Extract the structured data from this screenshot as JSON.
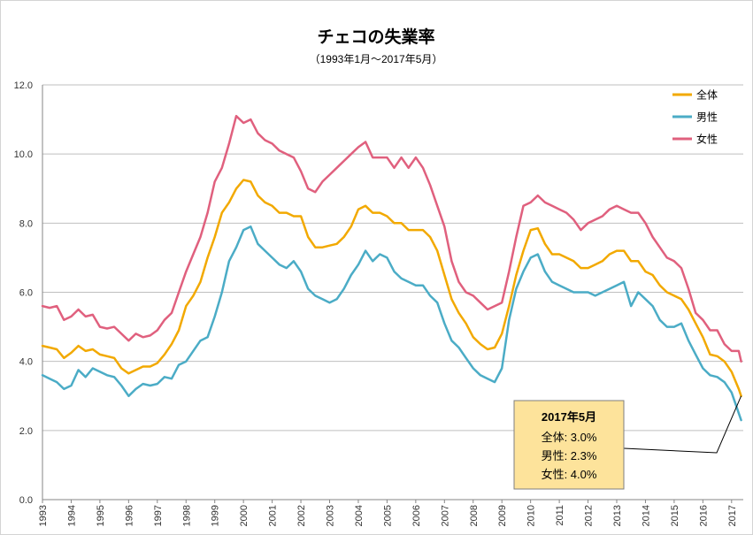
{
  "chart_data": {
    "type": "line",
    "title": "チェコの失業率",
    "subtitle": "（1993年1月～2017年5月）",
    "xlabel": "",
    "ylabel": "",
    "xlim": [
      "1993-01",
      "2017-05"
    ],
    "ylim": [
      0,
      12
    ],
    "yticks": [
      "0.0",
      "2.0",
      "4.0",
      "6.0",
      "8.0",
      "10.0",
      "12.0"
    ],
    "xticks": [
      "1993",
      "1994",
      "1995",
      "1996",
      "1997",
      "1998",
      "1999",
      "2000",
      "2001",
      "2002",
      "2003",
      "2004",
      "2005",
      "2006",
      "2007",
      "2008",
      "2009",
      "2010",
      "2011",
      "2012",
      "2013",
      "2014",
      "2015",
      "2016",
      "2017"
    ],
    "grid": true,
    "legend": "top-right",
    "x": [
      "1993-01",
      "1993-04",
      "1993-07",
      "1993-10",
      "1994-01",
      "1994-04",
      "1994-07",
      "1994-10",
      "1995-01",
      "1995-04",
      "1995-07",
      "1995-10",
      "1996-01",
      "1996-04",
      "1996-07",
      "1996-10",
      "1997-01",
      "1997-04",
      "1997-07",
      "1997-10",
      "1998-01",
      "1998-04",
      "1998-07",
      "1998-10",
      "1999-01",
      "1999-04",
      "1999-07",
      "1999-10",
      "2000-01",
      "2000-04",
      "2000-07",
      "2000-10",
      "2001-01",
      "2001-04",
      "2001-07",
      "2001-10",
      "2002-01",
      "2002-04",
      "2002-07",
      "2002-10",
      "2003-01",
      "2003-04",
      "2003-07",
      "2003-10",
      "2004-01",
      "2004-04",
      "2004-07",
      "2004-10",
      "2005-01",
      "2005-04",
      "2005-07",
      "2005-10",
      "2006-01",
      "2006-04",
      "2006-07",
      "2006-10",
      "2007-01",
      "2007-04",
      "2007-07",
      "2007-10",
      "2008-01",
      "2008-04",
      "2008-07",
      "2008-10",
      "2009-01",
      "2009-04",
      "2009-07",
      "2009-10",
      "2010-01",
      "2010-04",
      "2010-07",
      "2010-10",
      "2011-01",
      "2011-04",
      "2011-07",
      "2011-10",
      "2012-01",
      "2012-04",
      "2012-07",
      "2012-10",
      "2013-01",
      "2013-04",
      "2013-07",
      "2013-10",
      "2014-01",
      "2014-04",
      "2014-07",
      "2014-10",
      "2015-01",
      "2015-04",
      "2015-07",
      "2015-10",
      "2016-01",
      "2016-04",
      "2016-07",
      "2016-10",
      "2017-01",
      "2017-04",
      "2017-05"
    ],
    "series": [
      {
        "name": "全体",
        "color": "#f2a900",
        "values": [
          4.45,
          4.4,
          4.35,
          4.1,
          4.25,
          4.45,
          4.3,
          4.35,
          4.2,
          4.15,
          4.1,
          3.8,
          3.65,
          3.75,
          3.85,
          3.85,
          3.95,
          4.2,
          4.5,
          4.9,
          5.6,
          5.9,
          6.3,
          7.0,
          7.6,
          8.3,
          8.6,
          9.0,
          9.25,
          9.2,
          8.8,
          8.6,
          8.5,
          8.3,
          8.3,
          8.2,
          8.2,
          7.6,
          7.3,
          7.3,
          7.35,
          7.4,
          7.6,
          7.9,
          8.4,
          8.5,
          8.3,
          8.3,
          8.2,
          8.0,
          8.0,
          7.8,
          7.8,
          7.8,
          7.6,
          7.2,
          6.5,
          5.8,
          5.4,
          5.1,
          4.7,
          4.5,
          4.35,
          4.4,
          4.8,
          5.6,
          6.5,
          7.2,
          7.8,
          7.85,
          7.4,
          7.1,
          7.1,
          7.0,
          6.9,
          6.7,
          6.7,
          6.8,
          6.9,
          7.1,
          7.2,
          7.2,
          6.9,
          6.9,
          6.6,
          6.5,
          6.2,
          6.0,
          5.9,
          5.8,
          5.5,
          5.1,
          4.7,
          4.2,
          4.15,
          4.0,
          3.7,
          3.2,
          3.0
        ]
      },
      {
        "name": "男性",
        "color": "#4bacc6",
        "values": [
          3.6,
          3.5,
          3.4,
          3.2,
          3.3,
          3.75,
          3.55,
          3.8,
          3.7,
          3.6,
          3.55,
          3.3,
          3.0,
          3.2,
          3.35,
          3.3,
          3.35,
          3.55,
          3.5,
          3.9,
          4.0,
          4.3,
          4.6,
          4.7,
          5.3,
          6.0,
          6.9,
          7.3,
          7.8,
          7.9,
          7.4,
          7.2,
          7.0,
          6.8,
          6.7,
          6.9,
          6.6,
          6.1,
          5.9,
          5.8,
          5.7,
          5.8,
          6.1,
          6.5,
          6.8,
          7.2,
          6.9,
          7.1,
          7.0,
          6.6,
          6.4,
          6.3,
          6.2,
          6.2,
          5.9,
          5.7,
          5.1,
          4.6,
          4.4,
          4.1,
          3.8,
          3.6,
          3.5,
          3.4,
          3.8,
          5.2,
          6.1,
          6.6,
          7.0,
          7.1,
          6.6,
          6.3,
          6.2,
          6.1,
          6.0,
          6.0,
          6.0,
          5.9,
          6.0,
          6.1,
          6.2,
          6.3,
          5.6,
          6.0,
          5.8,
          5.6,
          5.2,
          5.0,
          5.0,
          5.1,
          4.6,
          4.2,
          3.8,
          3.6,
          3.55,
          3.4,
          3.1,
          2.5,
          2.3
        ]
      },
      {
        "name": "女性",
        "color": "#e0607e",
        "values": [
          5.6,
          5.55,
          5.6,
          5.2,
          5.3,
          5.5,
          5.3,
          5.35,
          5.0,
          4.95,
          5.0,
          4.8,
          4.6,
          4.8,
          4.7,
          4.75,
          4.9,
          5.2,
          5.4,
          6.0,
          6.6,
          7.1,
          7.6,
          8.3,
          9.2,
          9.6,
          10.3,
          11.1,
          10.9,
          11.0,
          10.6,
          10.4,
          10.3,
          10.1,
          10.0,
          9.9,
          9.5,
          9.0,
          8.9,
          9.2,
          9.4,
          9.6,
          9.8,
          10.0,
          10.2,
          10.35,
          9.9,
          9.9,
          9.9,
          9.6,
          9.9,
          9.6,
          9.9,
          9.6,
          9.1,
          8.5,
          7.9,
          6.9,
          6.3,
          6.0,
          5.9,
          5.7,
          5.5,
          5.6,
          5.7,
          6.6,
          7.6,
          8.5,
          8.6,
          8.8,
          8.6,
          8.5,
          8.4,
          8.3,
          8.1,
          7.8,
          8.0,
          8.1,
          8.2,
          8.4,
          8.5,
          8.4,
          8.3,
          8.3,
          8.0,
          7.6,
          7.3,
          7.0,
          6.9,
          6.7,
          6.1,
          5.4,
          5.2,
          4.9,
          4.9,
          4.5,
          4.3,
          4.3,
          4.0
        ]
      }
    ],
    "annotation": {
      "title": "2017年5月",
      "lines": [
        "全体: 3.0%",
        "男性: 2.3%",
        "女性: 4.0%"
      ],
      "fill": "#fde39b"
    }
  }
}
